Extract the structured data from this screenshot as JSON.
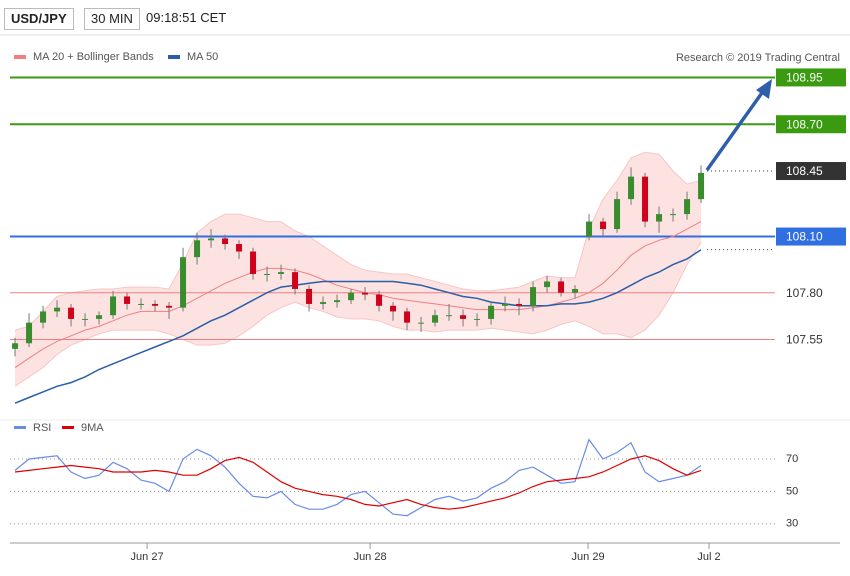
{
  "header": {
    "symbol": "USD/JPY",
    "interval": "30 MIN",
    "time": "09:18:51 CET",
    "credit": "Research © 2019 Trading Central"
  },
  "chart_data": [
    {
      "type": "candlestick",
      "xlim": [
        -0.36,
        59.64
      ],
      "ylim": [
        107.12,
        109.15
      ],
      "up_color": "#3a8d2f",
      "down_color": "#d0021b",
      "wick_color": "#777777",
      "open": [
        107.5,
        107.53,
        107.64,
        107.7,
        107.72,
        107.66,
        107.66,
        107.68,
        107.78,
        107.74,
        107.74,
        107.73,
        107.72,
        107.99,
        108.08,
        108.09,
        108.06,
        108.02,
        107.9,
        107.9,
        107.91,
        107.82,
        107.74,
        107.75,
        107.76,
        107.8,
        107.79,
        107.73,
        107.7,
        107.64,
        107.64,
        107.68,
        107.68,
        107.66,
        107.66,
        107.73,
        107.74,
        107.73,
        107.83,
        107.86,
        107.8,
        108.1,
        108.18,
        108.14,
        108.3,
        108.42,
        108.18,
        108.22,
        108.22,
        108.3
      ],
      "high": [
        107.56,
        107.69,
        107.73,
        107.76,
        107.74,
        107.69,
        107.7,
        107.81,
        107.8,
        107.77,
        107.76,
        107.75,
        108.04,
        108.12,
        108.14,
        108.11,
        108.08,
        108.04,
        107.94,
        107.95,
        107.93,
        107.84,
        107.78,
        107.79,
        107.82,
        107.83,
        107.81,
        107.75,
        107.72,
        107.67,
        107.71,
        107.74,
        107.71,
        107.69,
        107.75,
        107.78,
        107.77,
        107.86,
        107.89,
        107.88,
        107.84,
        108.22,
        108.2,
        108.34,
        108.47,
        108.44,
        108.26,
        108.25,
        108.34,
        108.48
      ],
      "low": [
        107.46,
        107.51,
        107.61,
        107.67,
        107.62,
        107.62,
        107.63,
        107.66,
        107.71,
        107.71,
        107.7,
        107.66,
        107.7,
        107.95,
        108.04,
        108.03,
        107.98,
        107.87,
        107.86,
        107.87,
        107.79,
        107.7,
        107.71,
        107.72,
        107.74,
        107.76,
        107.7,
        107.65,
        107.6,
        107.59,
        107.62,
        107.65,
        107.62,
        107.62,
        107.63,
        107.7,
        107.68,
        107.7,
        107.8,
        107.78,
        107.77,
        108.08,
        108.1,
        108.12,
        108.27,
        108.15,
        108.12,
        108.18,
        108.19,
        108.28
      ],
      "close": [
        107.53,
        107.64,
        107.7,
        107.72,
        107.66,
        107.66,
        107.68,
        107.78,
        107.74,
        107.74,
        107.73,
        107.72,
        107.99,
        108.08,
        108.09,
        108.06,
        108.02,
        107.9,
        107.9,
        107.91,
        107.82,
        107.74,
        107.75,
        107.76,
        107.8,
        107.79,
        107.73,
        107.7,
        107.64,
        107.64,
        107.68,
        107.68,
        107.66,
        107.66,
        107.73,
        107.74,
        107.73,
        107.83,
        107.86,
        107.8,
        107.82,
        108.18,
        108.14,
        108.3,
        108.42,
        108.18,
        108.22,
        108.22,
        108.3,
        108.44
      ],
      "series": [
        {
          "name": "MA 20 + Bollinger Bands",
          "color": "#f08080",
          "band_color": "#fde2e2",
          "values": [
            107.4,
            107.45,
            107.5,
            107.54,
            107.57,
            107.6,
            107.62,
            107.65,
            107.68,
            107.7,
            107.7,
            107.7,
            107.73,
            107.77,
            107.81,
            107.85,
            107.88,
            107.91,
            107.93,
            107.93,
            107.92,
            107.9,
            107.87,
            107.84,
            107.82,
            107.8,
            107.79,
            107.77,
            107.76,
            107.75,
            107.74,
            107.73,
            107.72,
            107.71,
            107.71,
            107.71,
            107.71,
            107.72,
            107.73,
            107.75,
            107.77,
            107.8,
            107.85,
            107.92,
            108.0,
            108.05,
            108.08,
            108.1,
            108.14,
            108.18
          ],
          "upper": [
            107.6,
            107.62,
            107.7,
            107.78,
            107.8,
            107.81,
            107.82,
            107.82,
            107.83,
            107.83,
            107.83,
            107.82,
            107.96,
            108.12,
            108.18,
            108.22,
            108.22,
            108.2,
            108.18,
            108.18,
            108.13,
            108.1,
            108.05,
            108.0,
            107.95,
            107.92,
            107.91,
            107.9,
            107.9,
            107.88,
            107.86,
            107.84,
            107.82,
            107.81,
            107.81,
            107.82,
            107.83,
            107.86,
            107.89,
            107.88,
            107.88,
            108.14,
            108.3,
            108.4,
            108.52,
            108.55,
            108.54,
            108.45,
            108.38,
            108.4
          ],
          "lower": [
            107.3,
            107.35,
            107.4,
            107.47,
            107.52,
            107.55,
            107.58,
            107.6,
            107.6,
            107.6,
            107.6,
            107.58,
            107.55,
            107.52,
            107.52,
            107.53,
            107.57,
            107.62,
            107.68,
            107.72,
            107.75,
            107.72,
            107.7,
            107.67,
            107.66,
            107.66,
            107.65,
            107.62,
            107.6,
            107.6,
            107.59,
            107.6,
            107.6,
            107.6,
            107.61,
            107.6,
            107.59,
            107.58,
            107.6,
            107.63,
            107.65,
            107.62,
            107.58,
            107.58,
            107.56,
            107.6,
            107.68,
            107.8,
            107.95,
            108.07
          ]
        },
        {
          "name": "MA 50",
          "color": "#2a5ea8",
          "values": [
            107.21,
            107.24,
            107.27,
            107.3,
            107.32,
            107.35,
            107.39,
            107.42,
            107.45,
            107.48,
            107.51,
            107.54,
            107.57,
            107.61,
            107.65,
            107.68,
            107.72,
            107.76,
            107.8,
            107.83,
            107.84,
            107.85,
            107.86,
            107.86,
            107.86,
            107.86,
            107.86,
            107.86,
            107.85,
            107.84,
            107.82,
            107.8,
            107.78,
            107.77,
            107.75,
            107.74,
            107.73,
            107.73,
            107.73,
            107.74,
            107.74,
            107.75,
            107.77,
            107.8,
            107.84,
            107.88,
            107.91,
            107.95,
            107.98,
            108.03
          ]
        }
      ],
      "levels": [
        {
          "value": 108.95,
          "label": "108.95",
          "color": "#3a9a10",
          "style": "solid",
          "box": true
        },
        {
          "value": 108.7,
          "label": "108.70",
          "color": "#3a9a10",
          "style": "solid",
          "box": true
        },
        {
          "value": 108.45,
          "label": "108.45",
          "color": "#333333",
          "style": "dotted",
          "box": true
        },
        {
          "value": 108.1,
          "label": "108.10",
          "color": "#2f6fe0",
          "style": "solid",
          "box": true
        },
        {
          "value": 107.8,
          "label": "107.80",
          "color": "#f08080",
          "style": "solid",
          "box": false
        },
        {
          "value": 107.55,
          "label": "107.55",
          "color": "#f08080",
          "style": "solid",
          "box": false
        }
      ]
    },
    {
      "type": "line",
      "xlim": [
        -0.36,
        59.64
      ],
      "ylim": [
        20,
        91
      ],
      "yticks": [
        70,
        50,
        30
      ],
      "grid": true,
      "xticks": [
        {
          "value": 9.43,
          "label": "Jun 27"
        },
        {
          "value": 25.36,
          "label": "Jun 28"
        },
        {
          "value": 40.93,
          "label": "Jun 29"
        },
        {
          "value": 49.57,
          "label": "Jul 2"
        }
      ],
      "series": [
        {
          "name": "RSI",
          "color": "#6a8ce6",
          "values": [
            63,
            70,
            71,
            72,
            62,
            58,
            60,
            68,
            64,
            57,
            55,
            50,
            70,
            76,
            72,
            65,
            55,
            47,
            46,
            50,
            42,
            39,
            39,
            42,
            48,
            50,
            43,
            36,
            35,
            40,
            45,
            47,
            44,
            46,
            52,
            56,
            63,
            65,
            60,
            55,
            56,
            82,
            70,
            74,
            80,
            62,
            56,
            58,
            60,
            66
          ]
        },
        {
          "name": "9MA",
          "color": "#e00000",
          "values": [
            62,
            63,
            64,
            65,
            66,
            65,
            64,
            62,
            62,
            62,
            63,
            62,
            60,
            60,
            64,
            69,
            71,
            68,
            62,
            56,
            52,
            50,
            48,
            47,
            45,
            42,
            41,
            43,
            45,
            42,
            40,
            39,
            40,
            42,
            44,
            46,
            49,
            53,
            56,
            57,
            58,
            59,
            62,
            66,
            70,
            72,
            69,
            64,
            60,
            63
          ]
        }
      ]
    }
  ]
}
